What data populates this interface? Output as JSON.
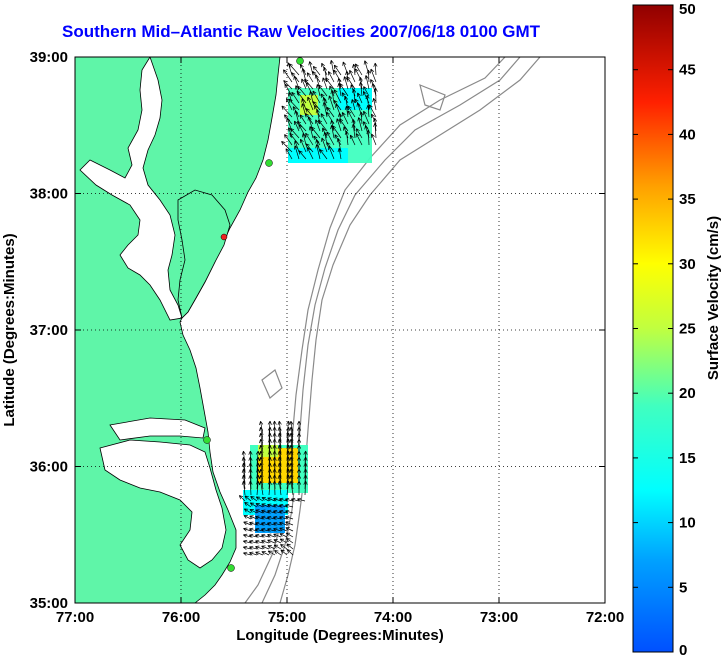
{
  "title": "Southern Mid–Atlantic Raw Velocities 2007/06/18 0100 GMT",
  "map": {
    "xlabel": "Longitude (Degrees:Minutes)",
    "ylabel": "Latitude (Degrees:Minutes)",
    "x_ticks": [
      "77:00",
      "76:00",
      "75:00",
      "74:00",
      "73:00",
      "72:00"
    ],
    "y_ticks": [
      "39:00",
      "38:00",
      "37:00",
      "36:00",
      "35:00"
    ],
    "xlim": [
      -77,
      -72
    ],
    "ylim": [
      35,
      39
    ],
    "grid": true,
    "colors": {
      "land": "#5ff5a8",
      "coast": "#000000",
      "bathy": "#8a8a8a",
      "water": "#ffffff",
      "station_green": "#33dd33",
      "station_red": "#ee2222"
    }
  },
  "colorbar": {
    "label": "Surface Velocity (cm/s)",
    "ticks": [
      "0",
      "5",
      "10",
      "15",
      "20",
      "25",
      "30",
      "35",
      "40",
      "45",
      "50"
    ],
    "range": [
      0,
      50
    ],
    "colormap": "jet"
  }
}
